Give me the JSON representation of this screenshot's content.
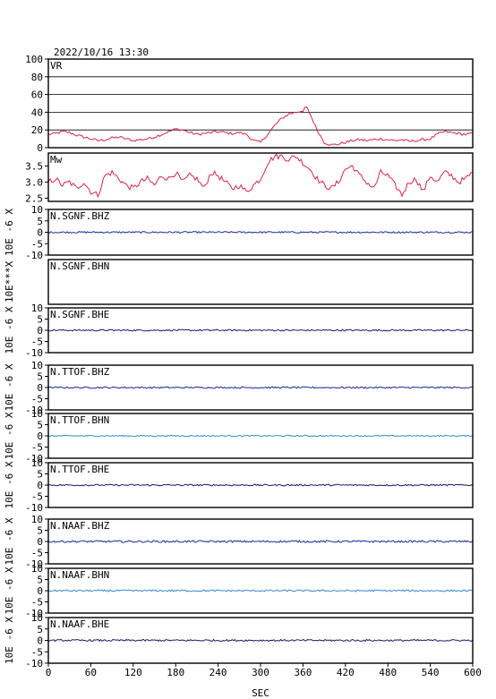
{
  "header": {
    "datetime": "2022/10/16  13:30"
  },
  "x_axis": {
    "label": "SEC",
    "ticks": [
      0,
      60,
      120,
      180,
      240,
      300,
      360,
      420,
      480,
      540,
      600
    ],
    "range": [
      0,
      600
    ]
  },
  "chart_data": [
    {
      "type": "line",
      "id": "vr",
      "panel_label": "VR",
      "ylim": [
        0,
        100
      ],
      "yticks": [
        0,
        20,
        40,
        60,
        80,
        100
      ],
      "grid": true,
      "color": "#e0204a",
      "x": [
        0,
        10,
        20,
        30,
        40,
        50,
        60,
        70,
        80,
        90,
        100,
        110,
        120,
        130,
        140,
        150,
        160,
        170,
        180,
        190,
        200,
        210,
        220,
        230,
        240,
        250,
        260,
        270,
        280,
        290,
        300,
        310,
        320,
        330,
        340,
        350,
        360,
        365,
        370,
        380,
        390,
        400,
        410,
        420,
        430,
        440,
        450,
        460,
        470,
        480,
        490,
        500,
        510,
        520,
        530,
        540,
        550,
        560,
        570,
        580,
        590,
        600
      ],
      "values": [
        15,
        16,
        18,
        17,
        14,
        12,
        10,
        8,
        9,
        11,
        12,
        10,
        8,
        9,
        10,
        12,
        15,
        18,
        21,
        20,
        17,
        15,
        16,
        17,
        18,
        17,
        16,
        17,
        15,
        8,
        6,
        15,
        25,
        33,
        38,
        40,
        42,
        46,
        38,
        20,
        6,
        3,
        4,
        6,
        8,
        9,
        8,
        9,
        10,
        9,
        8,
        9,
        7,
        8,
        9,
        10,
        15,
        18,
        17,
        16,
        15,
        16
      ]
    },
    {
      "type": "line",
      "id": "mw",
      "panel_label": "Mw",
      "ylim": [
        2.4,
        3.9
      ],
      "yticks": [
        2.5,
        3.0,
        3.5
      ],
      "color": "#e0204a",
      "x": [
        0,
        10,
        20,
        30,
        40,
        50,
        60,
        70,
        80,
        90,
        100,
        110,
        120,
        130,
        140,
        150,
        160,
        170,
        180,
        190,
        200,
        210,
        220,
        230,
        240,
        250,
        260,
        270,
        280,
        290,
        300,
        310,
        320,
        330,
        340,
        350,
        360,
        370,
        380,
        390,
        400,
        410,
        420,
        430,
        440,
        450,
        460,
        470,
        480,
        490,
        500,
        510,
        520,
        530,
        540,
        550,
        560,
        570,
        580,
        590,
        600
      ],
      "values": [
        3.0,
        3.1,
        2.9,
        3.0,
        2.8,
        3.0,
        2.7,
        2.6,
        3.2,
        3.3,
        3.1,
        2.9,
        2.8,
        3.0,
        3.1,
        2.9,
        3.2,
        3.1,
        3.3,
        3.0,
        3.2,
        3.1,
        2.8,
        3.3,
        3.2,
        3.0,
        2.8,
        2.9,
        2.7,
        2.9,
        3.1,
        3.6,
        3.8,
        3.8,
        3.7,
        3.8,
        3.6,
        3.4,
        3.1,
        2.9,
        2.8,
        3.0,
        3.4,
        3.5,
        3.2,
        3.0,
        2.8,
        3.3,
        3.2,
        2.9,
        2.6,
        3.0,
        3.1,
        2.7,
        3.2,
        3.0,
        3.3,
        3.2,
        3.0,
        3.1,
        3.3
      ]
    },
    {
      "type": "line",
      "id": "sgnf-bhz",
      "panel_label": "N.SGNF.BHZ",
      "ylabel": "10E -6 X",
      "ylim": [
        -10,
        10
      ],
      "yticks": [
        -10,
        -5,
        0,
        5,
        10
      ],
      "color": "#1a2a9a",
      "baseline": 0,
      "noise_amplitude": 0.35,
      "has_data": true
    },
    {
      "type": "line",
      "id": "sgnf-bhn",
      "panel_label": "N.SGNF.BHN",
      "ylabel": "10E***X",
      "ylim": null,
      "yticks": [],
      "color": "#1a2a9a",
      "has_data": false
    },
    {
      "type": "line",
      "id": "sgnf-bhe",
      "panel_label": "N.SGNF.BHE",
      "ylabel": "10E -6 X",
      "ylim": [
        -10,
        10
      ],
      "yticks": [
        -10,
        -5,
        0,
        5,
        10
      ],
      "color": "#1a1a6a",
      "baseline": 0,
      "noise_amplitude": 0.35,
      "has_data": true
    },
    {
      "type": "line",
      "id": "ttof-bhz",
      "panel_label": "N.TTOF.BHZ",
      "ylabel": "10E -6 X",
      "ylim": [
        -10,
        10
      ],
      "yticks": [
        -10,
        -5,
        0,
        5,
        10
      ],
      "color": "#1a2a9a",
      "baseline": 0,
      "noise_amplitude": 0.35,
      "has_data": true
    },
    {
      "type": "line",
      "id": "ttof-bhn",
      "panel_label": "N.TTOF.BHN",
      "ylabel": "10E -6 X",
      "ylim": [
        -10,
        10
      ],
      "yticks": [
        -10,
        -5,
        0,
        5,
        10
      ],
      "color": "#3a8ad0",
      "baseline": 0,
      "noise_amplitude": 0.3,
      "has_data": true
    },
    {
      "type": "line",
      "id": "ttof-bhe",
      "panel_label": "N.TTOF.BHE",
      "ylabel": "10E -6 X",
      "ylim": [
        -10,
        10
      ],
      "yticks": [
        -10,
        -5,
        0,
        5,
        10
      ],
      "color": "#1a1a6a",
      "baseline": 0,
      "noise_amplitude": 0.35,
      "has_data": true
    },
    {
      "type": "line",
      "id": "naaf-bhz",
      "panel_label": "N.NAAF.BHZ",
      "ylabel": "10E -6 X",
      "ylim": [
        -10,
        10
      ],
      "yticks": [
        -10,
        -5,
        0,
        5,
        10
      ],
      "color": "#1a2a9a",
      "baseline": 0,
      "noise_amplitude": 0.45,
      "has_data": true
    },
    {
      "type": "line",
      "id": "naaf-bhn",
      "panel_label": "N.NAAF.BHN",
      "ylabel": "10E -6 X",
      "ylim": [
        -10,
        10
      ],
      "yticks": [
        -10,
        -5,
        0,
        5,
        10
      ],
      "color": "#3a8ad0",
      "baseline": 0,
      "noise_amplitude": 0.4,
      "has_data": true
    },
    {
      "type": "line",
      "id": "naaf-bhe",
      "panel_label": "N.NAAF.BHE",
      "ylabel": "10E -6 X",
      "ylim": [
        -10,
        10
      ],
      "yticks": [
        -10,
        -5,
        0,
        5,
        10
      ],
      "color": "#1a1a6a",
      "baseline": 0,
      "noise_amplitude": 0.4,
      "has_data": true
    }
  ]
}
